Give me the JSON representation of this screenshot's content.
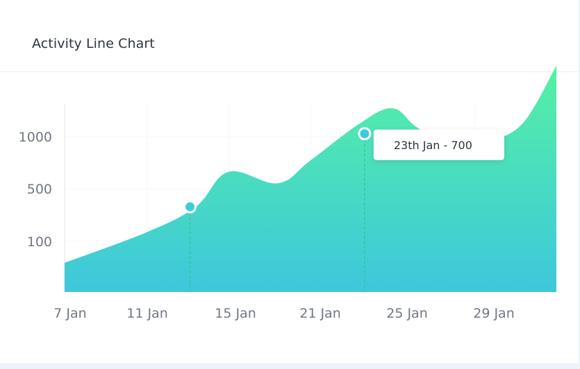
{
  "card": {
    "title": "Activity Line Chart"
  },
  "chart_data": {
    "type": "area",
    "title": "Activity Line Chart",
    "categories": [
      "7 Jan",
      "11 Jan",
      "15 Jan",
      "21 Jan",
      "25 Jan",
      "29 Jan"
    ],
    "y_tick_labels": [
      "100",
      "500",
      "1000"
    ],
    "x_range": [
      0,
      6
    ],
    "y_range": [
      -100,
      1400
    ],
    "series": [
      {
        "x": [
          0,
          1,
          1.6,
          2,
          2.6,
          3,
          3.6,
          4,
          4.3,
          4.8,
          5.2,
          5.6,
          6
        ],
        "y": [
          130,
          370,
          570,
          845,
          755,
          935,
          1225,
          1345,
          1195,
          1000,
          1085,
          1235,
          1680
        ]
      }
    ],
    "markers": [
      {
        "x": 1.53,
        "y": 570
      },
      {
        "x": 3.66,
        "y": 1145
      }
    ],
    "tooltip": {
      "x": 3.66,
      "y": 1145,
      "text": "23th Jan - 700"
    },
    "grid": true,
    "colors": {
      "area_top": "#55f1a4",
      "area_bottom": "#3ec7dc",
      "marker": "#3ecbd9",
      "guide": "#2bc590"
    }
  }
}
